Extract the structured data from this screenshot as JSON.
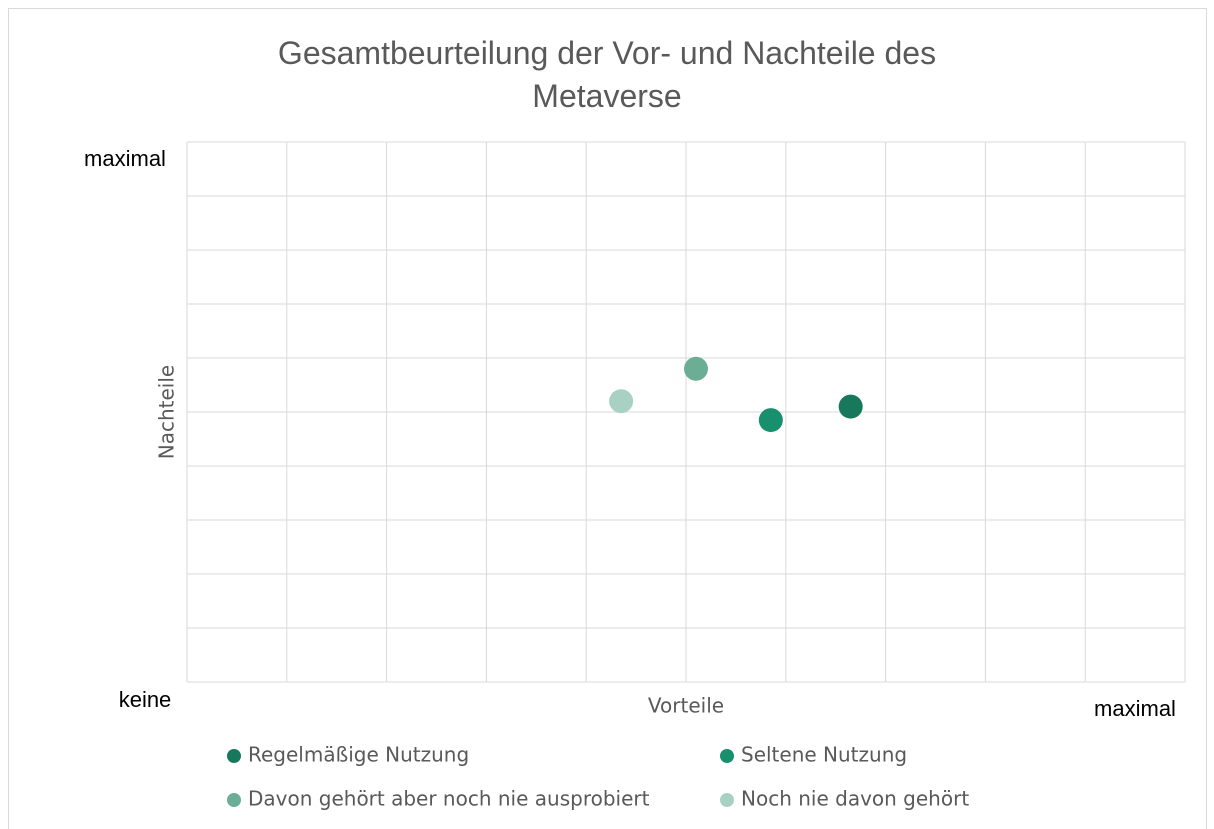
{
  "chart_data": {
    "type": "scatter",
    "title": "Gesamtbeurteilung der Vor- und Nachteile des Metaverse",
    "x_label": "Vorteile",
    "y_label": "Nachteile",
    "annotations": [
      "maximal",
      "keine",
      "maximal"
    ],
    "xlim": [
      0,
      10
    ],
    "ylim": [
      0,
      10
    ],
    "xticks": [
      0,
      1,
      2,
      3,
      4,
      5,
      6,
      7,
      8,
      9,
      10
    ],
    "yticks": [
      0,
      1,
      2,
      3,
      4,
      5,
      6,
      7,
      8,
      9,
      10
    ],
    "grid": true,
    "series": [
      {
        "name": "Regelmäßige Nutzung",
        "color": "#17785c",
        "x": [
          6.65
        ],
        "values": [
          5.1
        ]
      },
      {
        "name": "Seltene Nutzung",
        "color": "#19906d",
        "x": [
          5.85
        ],
        "values": [
          4.85
        ]
      },
      {
        "name": "Davon gehört aber noch nie ausprobiert",
        "color": "#6cae95",
        "x": [
          5.1
        ],
        "values": [
          5.8
        ]
      },
      {
        "name": "Noch nie davon gehört",
        "color": "#a9d1c3",
        "x": [
          4.35
        ],
        "values": [
          5.2
        ]
      }
    ]
  }
}
